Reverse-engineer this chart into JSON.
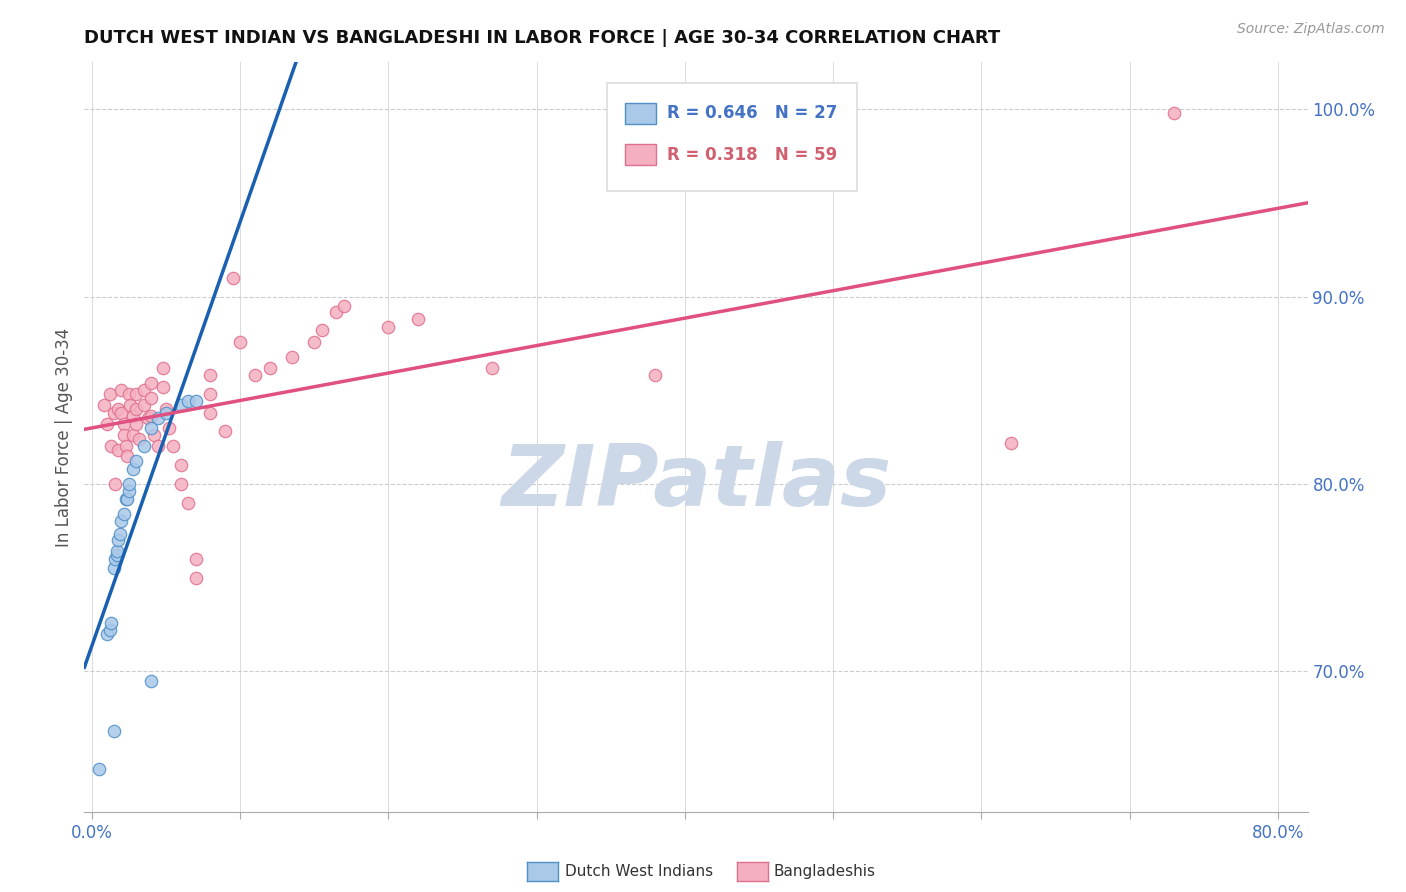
{
  "title": "DUTCH WEST INDIAN VS BANGLADESHI IN LABOR FORCE | AGE 30-34 CORRELATION CHART",
  "source": "Source: ZipAtlas.com",
  "ylabel": "In Labor Force | Age 30-34",
  "xlim": [
    -0.005,
    0.82
  ],
  "ylim": [
    0.625,
    1.025
  ],
  "xticks": [
    0.0,
    0.1,
    0.2,
    0.3,
    0.4,
    0.5,
    0.6,
    0.7,
    0.8
  ],
  "yticks": [
    0.7,
    0.8,
    0.9,
    1.0
  ],
  "yticklabels": [
    "70.0%",
    "80.0%",
    "90.0%",
    "100.0%"
  ],
  "blue_r": "0.646",
  "blue_n": "27",
  "pink_r": "0.318",
  "pink_n": "59",
  "blue_fill": "#aac8e8",
  "pink_fill": "#f4b0c0",
  "blue_edge": "#5090c8",
  "pink_edge": "#e07090",
  "blue_line": "#1a60b0",
  "pink_line": "#e05080",
  "watermark_text": "ZIPatlas",
  "watermark_color": "#ccd8e8",
  "bg": "#ffffff",
  "grid_color": "#cccccc",
  "blue_dots": [
    [
      0.005,
      0.648
    ],
    [
      0.01,
      0.72
    ],
    [
      0.012,
      0.722
    ],
    [
      0.013,
      0.726
    ],
    [
      0.015,
      0.755
    ],
    [
      0.016,
      0.76
    ],
    [
      0.017,
      0.762
    ],
    [
      0.017,
      0.764
    ],
    [
      0.018,
      0.77
    ],
    [
      0.019,
      0.773
    ],
    [
      0.02,
      0.78
    ],
    [
      0.022,
      0.784
    ],
    [
      0.023,
      0.792
    ],
    [
      0.024,
      0.792
    ],
    [
      0.025,
      0.796
    ],
    [
      0.025,
      0.8
    ],
    [
      0.028,
      0.808
    ],
    [
      0.03,
      0.812
    ],
    [
      0.035,
      0.82
    ],
    [
      0.04,
      0.83
    ],
    [
      0.045,
      0.835
    ],
    [
      0.05,
      0.838
    ],
    [
      0.06,
      0.842
    ],
    [
      0.065,
      0.844
    ],
    [
      0.07,
      0.844
    ],
    [
      0.04,
      0.695
    ],
    [
      0.015,
      0.668
    ]
  ],
  "pink_dots": [
    [
      0.008,
      0.842
    ],
    [
      0.01,
      0.832
    ],
    [
      0.012,
      0.848
    ],
    [
      0.013,
      0.82
    ],
    [
      0.015,
      0.838
    ],
    [
      0.016,
      0.8
    ],
    [
      0.018,
      0.84
    ],
    [
      0.018,
      0.818
    ],
    [
      0.02,
      0.85
    ],
    [
      0.02,
      0.838
    ],
    [
      0.022,
      0.832
    ],
    [
      0.022,
      0.826
    ],
    [
      0.023,
      0.82
    ],
    [
      0.024,
      0.815
    ],
    [
      0.025,
      0.848
    ],
    [
      0.026,
      0.842
    ],
    [
      0.028,
      0.836
    ],
    [
      0.028,
      0.826
    ],
    [
      0.03,
      0.848
    ],
    [
      0.03,
      0.84
    ],
    [
      0.03,
      0.832
    ],
    [
      0.032,
      0.824
    ],
    [
      0.035,
      0.85
    ],
    [
      0.035,
      0.842
    ],
    [
      0.038,
      0.835
    ],
    [
      0.04,
      0.854
    ],
    [
      0.04,
      0.846
    ],
    [
      0.04,
      0.836
    ],
    [
      0.042,
      0.826
    ],
    [
      0.045,
      0.82
    ],
    [
      0.048,
      0.862
    ],
    [
      0.048,
      0.852
    ],
    [
      0.05,
      0.84
    ],
    [
      0.052,
      0.83
    ],
    [
      0.055,
      0.82
    ],
    [
      0.06,
      0.81
    ],
    [
      0.06,
      0.8
    ],
    [
      0.065,
      0.79
    ],
    [
      0.07,
      0.76
    ],
    [
      0.07,
      0.75
    ],
    [
      0.08,
      0.858
    ],
    [
      0.08,
      0.848
    ],
    [
      0.08,
      0.838
    ],
    [
      0.09,
      0.828
    ],
    [
      0.095,
      0.91
    ],
    [
      0.1,
      0.876
    ],
    [
      0.11,
      0.858
    ],
    [
      0.12,
      0.862
    ],
    [
      0.135,
      0.868
    ],
    [
      0.15,
      0.876
    ],
    [
      0.155,
      0.882
    ],
    [
      0.165,
      0.892
    ],
    [
      0.17,
      0.895
    ],
    [
      0.2,
      0.884
    ],
    [
      0.22,
      0.888
    ],
    [
      0.27,
      0.862
    ],
    [
      0.38,
      0.858
    ],
    [
      0.62,
      0.822
    ],
    [
      0.73,
      0.998
    ]
  ]
}
